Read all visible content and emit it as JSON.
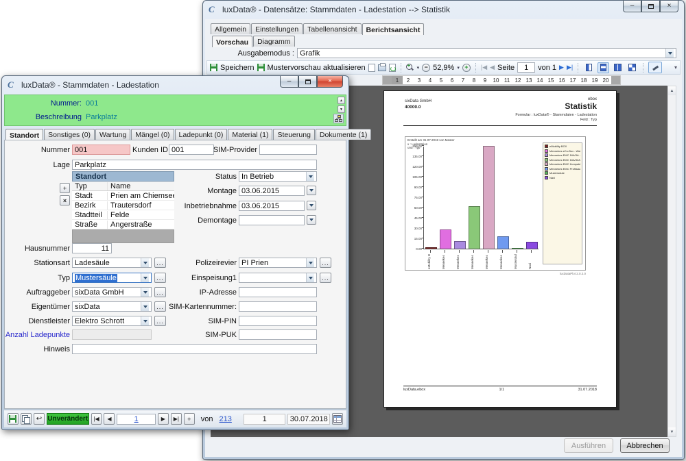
{
  "icons": {
    "app": "C",
    "minimize": "–",
    "close": "×",
    "browse": "...",
    "spin_up": "▲",
    "spin_down": "▼",
    "prev": "◀",
    "next": "▶",
    "undo": "↩",
    "plus": "+",
    "delete_x": "×",
    "overflow": "▾"
  },
  "front_window": {
    "title": "luxData® - Stammdaten - Ladestation",
    "header": {
      "nummer_label": "Nummer:",
      "nummer_value": "001",
      "beschreibung_label": "Beschreibung",
      "beschreibung_value": "Parkplatz"
    },
    "tabs": [
      "Standort",
      "Sonstiges (0)",
      "Wartung",
      "Mängel (0)",
      "Ladepunkt (0)",
      "Material (1)",
      "Steuerung",
      "Dokumente (1)"
    ],
    "fields": {
      "nummer": {
        "label": "Nummer",
        "value": "001"
      },
      "kunden_id": {
        "label": "Kunden ID",
        "value": "001"
      },
      "sim_provider": {
        "label": "SIM-Provider",
        "value": ""
      },
      "lage": {
        "label": "Lage",
        "value": "Parkplatz"
      },
      "status": {
        "label": "Status",
        "value": "In Betrieb"
      },
      "montage": {
        "label": "Montage",
        "value": "03.06.2015"
      },
      "inbetriebnahme": {
        "label": "Inbetriebnahme",
        "value": "03.06.2015"
      },
      "demontage": {
        "label": "Demontage",
        "value": ""
      },
      "hausnummer": {
        "label": "Hausnummer",
        "value": "11"
      },
      "stationsart": {
        "label": "Stationsart",
        "value": "Ladesäule"
      },
      "typ": {
        "label": "Typ",
        "value": "Mustersäule"
      },
      "auftraggeber": {
        "label": "Auftraggeber",
        "value": "sixData GmbH"
      },
      "eigentuemer": {
        "label": "Eigentümer",
        "value": "sixData"
      },
      "dienstleister": {
        "label": "Dienstleister",
        "value": "Elektro Schrott"
      },
      "anzahl_ladepunkte": {
        "label": "Anzahl Ladepunkte",
        "value": ""
      },
      "hinweis": {
        "label": "Hinweis",
        "value": ""
      },
      "polizeirevier": {
        "label": "Polizeirevier",
        "value": "PI Prien"
      },
      "einspeisung1": {
        "label": "Einspeisung1",
        "value": ""
      },
      "ip_adresse": {
        "label": "IP-Adresse",
        "value": ""
      },
      "sim_kartennummer": {
        "label": "SIM-Kartennummer:",
        "value": ""
      },
      "sim_pin": {
        "label": "SIM-PIN",
        "value": ""
      },
      "sim_puk": {
        "label": "SIM-PUK",
        "value": ""
      }
    },
    "standort_table": {
      "title": "Standort",
      "columns": [
        "Typ",
        "Name"
      ],
      "rows": [
        [
          "Stadt",
          "Prien am Chiemsee"
        ],
        [
          "Bezirk",
          "Trautersdorf"
        ],
        [
          "Stadtteil",
          "Felde"
        ],
        [
          "Straße",
          "Angerstraße"
        ]
      ]
    },
    "statusbar": {
      "state_badge": "Unverändert",
      "record_number": "1",
      "von_label": "von",
      "total_records": "213",
      "count_value": "1",
      "date_value": "30.07.2018"
    }
  },
  "back_window": {
    "title": "luxData® - Datensätze: Stammdaten - Ladestation --> Statistik",
    "tabs": [
      "Allgemein",
      "Einstellungen",
      "Tabellenansicht",
      "Berichtsansicht"
    ],
    "subtabs": [
      "Vorschau",
      "Diagramm"
    ],
    "ausgabemodus": {
      "label": "Ausgabemodus :",
      "value": "Grafik"
    },
    "toolbar": {
      "speichern": "Speichern",
      "aktualisieren": "Mustervorschau aktualisieren",
      "zoom_value": "52,9%",
      "seite_label": "Seite",
      "seite_value": "1",
      "von_label": "von 1"
    },
    "page_strip": {
      "selected": "1",
      "pages": [
        "1",
        "2",
        "3",
        "4",
        "5",
        "6",
        "7",
        "8",
        "9",
        "10",
        "11",
        "12",
        "13",
        "14",
        "15",
        "16",
        "17",
        "18",
        "19",
        "20"
      ]
    },
    "buttons": {
      "ausfuehren": "Ausführen",
      "abbrechen": "Abbrechen"
    }
  },
  "report": {
    "company": "sixData GmbH",
    "number": "40000.0",
    "product": "ebox",
    "title": "Statistik",
    "formular_line": "Formular : luxData® - Stammdaten - Ladestation",
    "feld_line": "Feld : Typ",
    "info_lines": [
      "Erstellt am 31.07.2018 von Master",
      "x : Ladestation",
      "und : Typ"
    ],
    "watermark": "luxDataPlot 2.0.2.0",
    "footer_left": "luxData.ebox",
    "footer_center": "1/1",
    "footer_right": "31.07.2018"
  },
  "chart_data": {
    "type": "bar",
    "title": "Statistik",
    "xlabel": "Typ",
    "ylabel": "",
    "categories": [
      "eMobility BOX",
      "Mennekes eCo-Box - Wallbox",
      "Mennekes EMC 16A/3A - 11 kW",
      "Mennekes EMC 16A/32A - 22 kW",
      "Mennekes EMC Kompakt 16A/63A - 11kl",
      "Mennekes EMC Profilsäule",
      "Mustersäule",
      "Navi"
    ],
    "values": [
      2,
      28,
      11,
      62,
      150,
      18,
      1,
      10
    ],
    "colors": [
      "#7b2020",
      "#e06ee0",
      "#a98be0",
      "#8ac878",
      "#d9a8c4",
      "#6f9af0",
      "#57b857",
      "#8a4ae0"
    ],
    "ylim": [
      0,
      150
    ],
    "yticks": [
      0,
      15,
      30,
      45,
      60,
      75,
      90,
      105,
      120,
      135,
      150
    ],
    "legend_position": "right",
    "grid": false
  }
}
